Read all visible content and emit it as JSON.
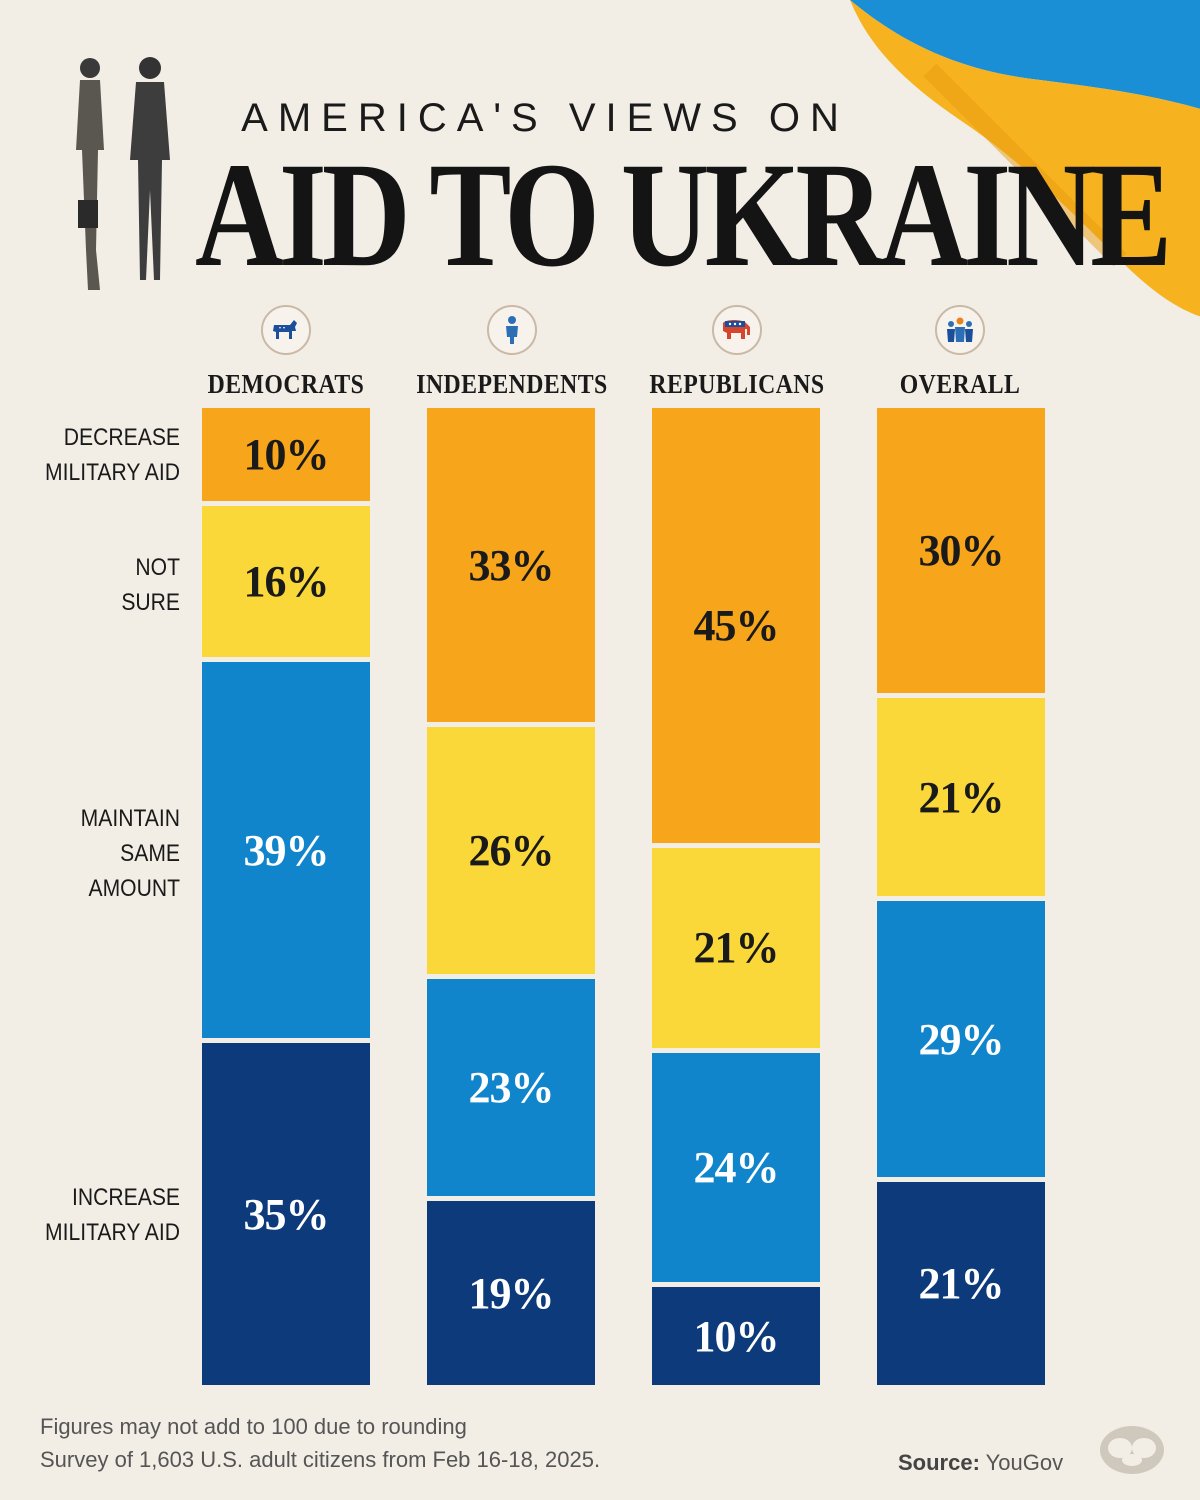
{
  "header": {
    "kicker": "AMERICA'S VIEWS ON",
    "title": "AID TO UKRAINE"
  },
  "groups": [
    {
      "name": "DEMOCRATS",
      "icon": "donkey-icon"
    },
    {
      "name": "INDEPENDENTS",
      "icon": "person-icon"
    },
    {
      "name": "REPUBLICANS",
      "icon": "elephant-icon"
    },
    {
      "name": "OVERALL",
      "icon": "people-group-icon"
    }
  ],
  "row_labels": {
    "decrease": [
      "DECREASE",
      "MILITARY AID"
    ],
    "not_sure": [
      "NOT",
      "SURE"
    ],
    "maintain": [
      "MAINTAIN",
      "SAME",
      "AMOUNT"
    ],
    "increase": [
      "INCREASE",
      "MILITARY AID"
    ]
  },
  "chart_data": {
    "type": "bar",
    "stacked": true,
    "categories": [
      "DEMOCRATS",
      "INDEPENDENTS",
      "REPUBLICANS",
      "OVERALL"
    ],
    "series": [
      {
        "name": "Decrease military aid",
        "values": [
          10,
          33,
          45,
          30
        ],
        "labels": [
          "10%",
          "33%",
          "45%",
          "30%"
        ],
        "color": "#f7a51a",
        "text_color": "#1a1a1a"
      },
      {
        "name": "Not sure",
        "values": [
          16,
          26,
          21,
          21
        ],
        "labels": [
          "16%",
          "26%",
          "21%",
          "21%"
        ],
        "color": "#fbd83a",
        "text_color": "#1a1a1a"
      },
      {
        "name": "Maintain same amount",
        "values": [
          39,
          23,
          24,
          29
        ],
        "labels": [
          "39%",
          "23%",
          "24%",
          "29%"
        ],
        "color": "#1185cc",
        "text_color": "#ffffff"
      },
      {
        "name": "Increase military aid",
        "values": [
          35,
          19,
          10,
          21
        ],
        "labels": [
          "35%",
          "19%",
          "10%",
          "21%"
        ],
        "color": "#0c3a7a",
        "text_color": "#ffffff"
      }
    ],
    "ylim": [
      0,
      100
    ]
  },
  "footer": {
    "note_1": "Figures may not add to 100 due to rounding",
    "note_2": "Survey of 1,603 U.S. adult citizens from Feb 16-18, 2025.",
    "source_label": "Source:",
    "source_value": "YouGov"
  },
  "colors": {
    "background": "#f2eee6",
    "flag_blue": "#1b8fd6",
    "flag_yellow": "#f6b21f"
  }
}
